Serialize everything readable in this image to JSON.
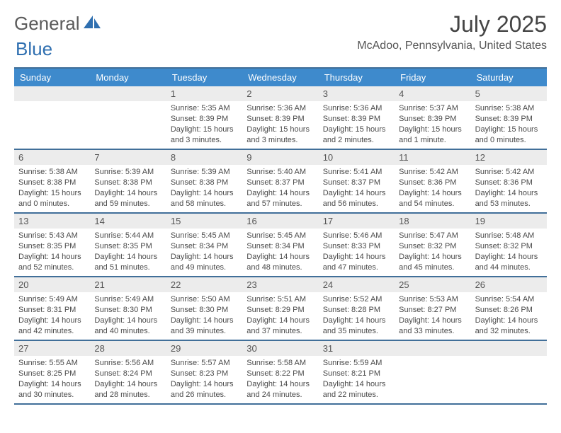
{
  "brand": {
    "text1": "General",
    "text2": "Blue"
  },
  "title": "July 2025",
  "location": "McAdoo, Pennsylvania, United States",
  "colors": {
    "header_blue": "#3e8acc",
    "grid_line": "#416f99",
    "band_bg": "#ececec",
    "brand_blue": "#2f6fb0"
  },
  "weekdays": [
    "Sunday",
    "Monday",
    "Tuesday",
    "Wednesday",
    "Thursday",
    "Friday",
    "Saturday"
  ],
  "weeks": [
    [
      {
        "num": "",
        "lines": []
      },
      {
        "num": "",
        "lines": []
      },
      {
        "num": "1",
        "lines": [
          "Sunrise: 5:35 AM",
          "Sunset: 8:39 PM",
          "Daylight: 15 hours",
          "and 3 minutes."
        ]
      },
      {
        "num": "2",
        "lines": [
          "Sunrise: 5:36 AM",
          "Sunset: 8:39 PM",
          "Daylight: 15 hours",
          "and 3 minutes."
        ]
      },
      {
        "num": "3",
        "lines": [
          "Sunrise: 5:36 AM",
          "Sunset: 8:39 PM",
          "Daylight: 15 hours",
          "and 2 minutes."
        ]
      },
      {
        "num": "4",
        "lines": [
          "Sunrise: 5:37 AM",
          "Sunset: 8:39 PM",
          "Daylight: 15 hours",
          "and 1 minute."
        ]
      },
      {
        "num": "5",
        "lines": [
          "Sunrise: 5:38 AM",
          "Sunset: 8:39 PM",
          "Daylight: 15 hours",
          "and 0 minutes."
        ]
      }
    ],
    [
      {
        "num": "6",
        "lines": [
          "Sunrise: 5:38 AM",
          "Sunset: 8:38 PM",
          "Daylight: 15 hours",
          "and 0 minutes."
        ]
      },
      {
        "num": "7",
        "lines": [
          "Sunrise: 5:39 AM",
          "Sunset: 8:38 PM",
          "Daylight: 14 hours",
          "and 59 minutes."
        ]
      },
      {
        "num": "8",
        "lines": [
          "Sunrise: 5:39 AM",
          "Sunset: 8:38 PM",
          "Daylight: 14 hours",
          "and 58 minutes."
        ]
      },
      {
        "num": "9",
        "lines": [
          "Sunrise: 5:40 AM",
          "Sunset: 8:37 PM",
          "Daylight: 14 hours",
          "and 57 minutes."
        ]
      },
      {
        "num": "10",
        "lines": [
          "Sunrise: 5:41 AM",
          "Sunset: 8:37 PM",
          "Daylight: 14 hours",
          "and 56 minutes."
        ]
      },
      {
        "num": "11",
        "lines": [
          "Sunrise: 5:42 AM",
          "Sunset: 8:36 PM",
          "Daylight: 14 hours",
          "and 54 minutes."
        ]
      },
      {
        "num": "12",
        "lines": [
          "Sunrise: 5:42 AM",
          "Sunset: 8:36 PM",
          "Daylight: 14 hours",
          "and 53 minutes."
        ]
      }
    ],
    [
      {
        "num": "13",
        "lines": [
          "Sunrise: 5:43 AM",
          "Sunset: 8:35 PM",
          "Daylight: 14 hours",
          "and 52 minutes."
        ]
      },
      {
        "num": "14",
        "lines": [
          "Sunrise: 5:44 AM",
          "Sunset: 8:35 PM",
          "Daylight: 14 hours",
          "and 51 minutes."
        ]
      },
      {
        "num": "15",
        "lines": [
          "Sunrise: 5:45 AM",
          "Sunset: 8:34 PM",
          "Daylight: 14 hours",
          "and 49 minutes."
        ]
      },
      {
        "num": "16",
        "lines": [
          "Sunrise: 5:45 AM",
          "Sunset: 8:34 PM",
          "Daylight: 14 hours",
          "and 48 minutes."
        ]
      },
      {
        "num": "17",
        "lines": [
          "Sunrise: 5:46 AM",
          "Sunset: 8:33 PM",
          "Daylight: 14 hours",
          "and 47 minutes."
        ]
      },
      {
        "num": "18",
        "lines": [
          "Sunrise: 5:47 AM",
          "Sunset: 8:32 PM",
          "Daylight: 14 hours",
          "and 45 minutes."
        ]
      },
      {
        "num": "19",
        "lines": [
          "Sunrise: 5:48 AM",
          "Sunset: 8:32 PM",
          "Daylight: 14 hours",
          "and 44 minutes."
        ]
      }
    ],
    [
      {
        "num": "20",
        "lines": [
          "Sunrise: 5:49 AM",
          "Sunset: 8:31 PM",
          "Daylight: 14 hours",
          "and 42 minutes."
        ]
      },
      {
        "num": "21",
        "lines": [
          "Sunrise: 5:49 AM",
          "Sunset: 8:30 PM",
          "Daylight: 14 hours",
          "and 40 minutes."
        ]
      },
      {
        "num": "22",
        "lines": [
          "Sunrise: 5:50 AM",
          "Sunset: 8:30 PM",
          "Daylight: 14 hours",
          "and 39 minutes."
        ]
      },
      {
        "num": "23",
        "lines": [
          "Sunrise: 5:51 AM",
          "Sunset: 8:29 PM",
          "Daylight: 14 hours",
          "and 37 minutes."
        ]
      },
      {
        "num": "24",
        "lines": [
          "Sunrise: 5:52 AM",
          "Sunset: 8:28 PM",
          "Daylight: 14 hours",
          "and 35 minutes."
        ]
      },
      {
        "num": "25",
        "lines": [
          "Sunrise: 5:53 AM",
          "Sunset: 8:27 PM",
          "Daylight: 14 hours",
          "and 33 minutes."
        ]
      },
      {
        "num": "26",
        "lines": [
          "Sunrise: 5:54 AM",
          "Sunset: 8:26 PM",
          "Daylight: 14 hours",
          "and 32 minutes."
        ]
      }
    ],
    [
      {
        "num": "27",
        "lines": [
          "Sunrise: 5:55 AM",
          "Sunset: 8:25 PM",
          "Daylight: 14 hours",
          "and 30 minutes."
        ]
      },
      {
        "num": "28",
        "lines": [
          "Sunrise: 5:56 AM",
          "Sunset: 8:24 PM",
          "Daylight: 14 hours",
          "and 28 minutes."
        ]
      },
      {
        "num": "29",
        "lines": [
          "Sunrise: 5:57 AM",
          "Sunset: 8:23 PM",
          "Daylight: 14 hours",
          "and 26 minutes."
        ]
      },
      {
        "num": "30",
        "lines": [
          "Sunrise: 5:58 AM",
          "Sunset: 8:22 PM",
          "Daylight: 14 hours",
          "and 24 minutes."
        ]
      },
      {
        "num": "31",
        "lines": [
          "Sunrise: 5:59 AM",
          "Sunset: 8:21 PM",
          "Daylight: 14 hours",
          "and 22 minutes."
        ]
      },
      {
        "num": "",
        "lines": []
      },
      {
        "num": "",
        "lines": []
      }
    ]
  ]
}
